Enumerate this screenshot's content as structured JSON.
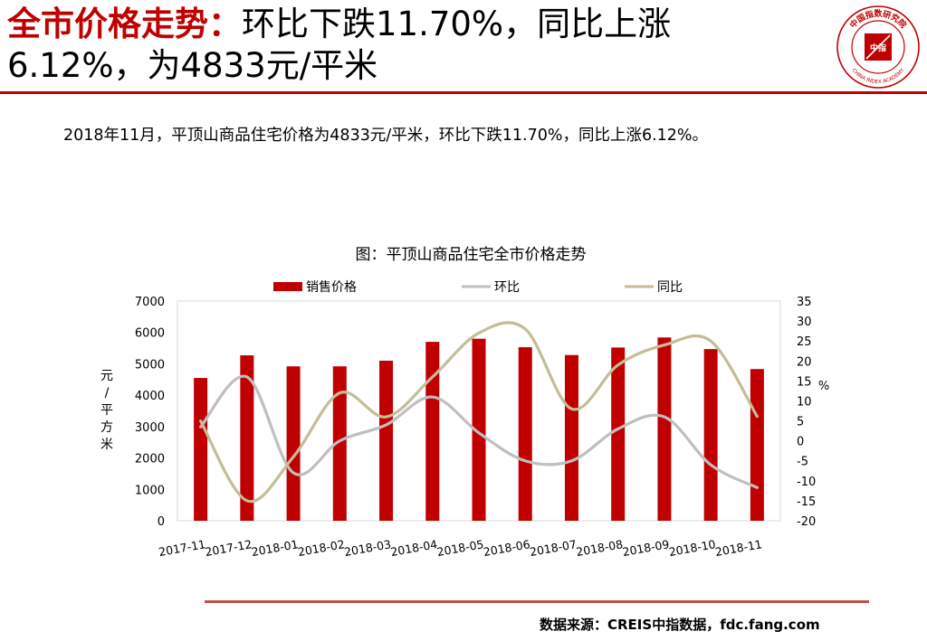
{
  "header": {
    "title_highlight": "全市价格走势：",
    "title_rest": "环比下跌11.70%，同比上涨6.12%，为4833元/平米",
    "logo_text": "中国指数研究院",
    "logo_en": "CHINA INDEX ACADEMY",
    "logo_center": "中指"
  },
  "description": "2018年11月，平顶山商品住宅价格为4833元/平米，环比下跌11.70%，同比上涨6.12%。",
  "footer": {
    "source": "数据来源：CREIS中指数据，fdc.fang.com"
  },
  "colors": {
    "accent": "#c00000",
    "bar": "#c00000",
    "mom": "#bfbfbf",
    "yoy": "#c4bd97",
    "rule": "#c0504d"
  },
  "chart_data": {
    "type": "bar",
    "title": "图：平顶山商品住宅全市价格走势",
    "categories": [
      "2017-11",
      "2017-12",
      "2018-01",
      "2018-02",
      "2018-03",
      "2018-04",
      "2018-05",
      "2018-06",
      "2018-07",
      "2018-08",
      "2018-09",
      "2018-10",
      "2018-11"
    ],
    "ylabel": "元/平方米",
    "y2label": "%",
    "ylim": [
      0,
      7000
    ],
    "y2lim": [
      -20,
      35
    ],
    "yticks": [
      "0",
      "1000",
      "2000",
      "3000",
      "4000",
      "5000",
      "6000",
      "7000"
    ],
    "y2ticks": [
      "-20",
      "-15",
      "-10",
      "-5",
      "0",
      "5",
      "10",
      "15",
      "20",
      "25",
      "30",
      "35"
    ],
    "legend_position": "top",
    "series": [
      {
        "name": "销售价格",
        "type": "bar",
        "axis": "left",
        "values": [
          4550,
          5270,
          4920,
          4920,
          5100,
          5700,
          5800,
          5530,
          5280,
          5520,
          5840,
          5470,
          4833
        ]
      },
      {
        "name": "环比",
        "type": "line",
        "axis": "right",
        "values": [
          3.5,
          16,
          -8,
          0,
          4,
          11,
          2,
          -5,
          -5,
          3,
          6,
          -6,
          -11.7
        ]
      },
      {
        "name": "同比",
        "type": "line",
        "axis": "right",
        "values": [
          5,
          -15,
          -4,
          12,
          6,
          16,
          27,
          28,
          8,
          19,
          24,
          25,
          6.12
        ]
      }
    ]
  }
}
